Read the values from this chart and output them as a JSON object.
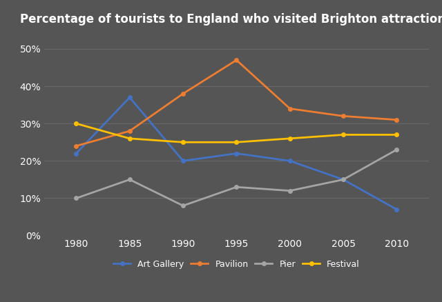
{
  "title": "Percentage of tourists to England who visited Brighton attractions",
  "years": [
    1980,
    1985,
    1990,
    1995,
    2000,
    2005,
    2010
  ],
  "series": {
    "Art Gallery": {
      "values": [
        22,
        37,
        20,
        22,
        20,
        15,
        7
      ],
      "color": "#4472C4",
      "marker": "o"
    },
    "Pavilion": {
      "values": [
        24,
        28,
        38,
        47,
        34,
        32,
        31
      ],
      "color": "#ED7D31",
      "marker": "o"
    },
    "Pier": {
      "values": [
        10,
        15,
        8,
        13,
        12,
        15,
        23
      ],
      "color": "#A5A5A5",
      "marker": "o"
    },
    "Festival": {
      "values": [
        30,
        26,
        25,
        25,
        26,
        27,
        27
      ],
      "color": "#FFC000",
      "marker": "o"
    }
  },
  "ylim": [
    0,
    55
  ],
  "yticks": [
    0,
    10,
    20,
    30,
    40,
    50
  ],
  "ytick_labels": [
    "0%",
    "10%",
    "20%",
    "30%",
    "40%",
    "50%"
  ],
  "xlim": [
    1977,
    2013
  ],
  "background_color": "#555555",
  "plot_bg_color": "#555555",
  "grid_color": "#686868",
  "text_color": "#ffffff",
  "title_fontsize": 12,
  "legend_fontsize": 9,
  "tick_fontsize": 10,
  "line_width": 2.0,
  "markersize": 4
}
